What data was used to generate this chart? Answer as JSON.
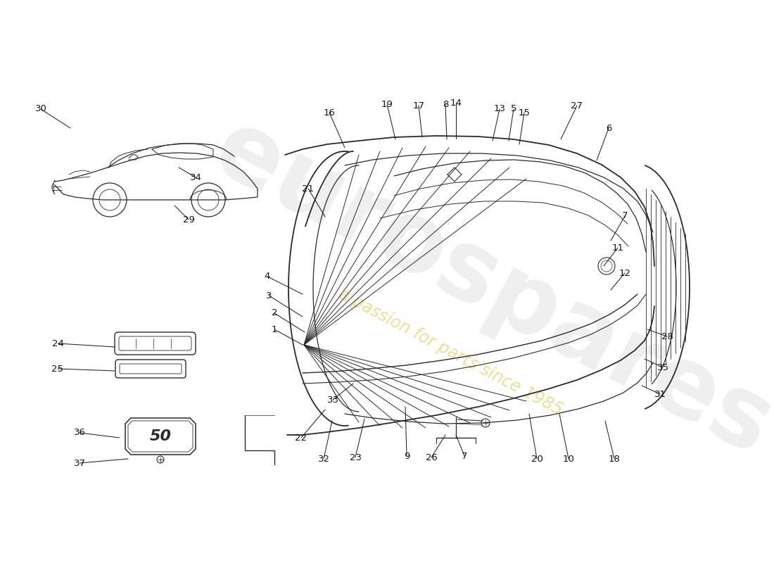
{
  "bg_color": "#ffffff",
  "line_color": "#2a2a2a",
  "label_color": "#111111",
  "wm_color": "#c8c8c8",
  "wm_alpha": 0.28,
  "wm_sub_color": "#d4c030",
  "wm_sub_alpha": 0.5,
  "labels": [
    [
      "1",
      390,
      468,
      430,
      490
    ],
    [
      "2",
      390,
      445,
      433,
      472
    ],
    [
      "3",
      382,
      420,
      430,
      450
    ],
    [
      "4",
      380,
      393,
      430,
      418
    ],
    [
      "5",
      730,
      155,
      723,
      200
    ],
    [
      "6",
      865,
      182,
      848,
      228
    ],
    [
      "7",
      888,
      307,
      868,
      342
    ],
    [
      "7",
      660,
      648,
      648,
      618
    ],
    [
      "8",
      633,
      148,
      635,
      198
    ],
    [
      "9",
      578,
      648,
      576,
      578
    ],
    [
      "10",
      808,
      652,
      795,
      588
    ],
    [
      "11",
      878,
      352,
      858,
      378
    ],
    [
      "12",
      888,
      388,
      868,
      412
    ],
    [
      "13",
      710,
      155,
      700,
      200
    ],
    [
      "14",
      648,
      147,
      648,
      197
    ],
    [
      "15",
      745,
      160,
      738,
      205
    ],
    [
      "16",
      468,
      160,
      490,
      210
    ],
    [
      "17",
      595,
      150,
      600,
      195
    ],
    [
      "18",
      873,
      652,
      860,
      598
    ],
    [
      "19",
      550,
      148,
      562,
      198
    ],
    [
      "20",
      763,
      652,
      752,
      588
    ],
    [
      "21",
      438,
      268,
      462,
      308
    ],
    [
      "22",
      428,
      622,
      462,
      582
    ],
    [
      "23",
      505,
      650,
      518,
      595
    ],
    [
      "24",
      82,
      488,
      163,
      493
    ],
    [
      "25",
      82,
      524,
      163,
      527
    ],
    [
      "26",
      613,
      650,
      633,
      618
    ],
    [
      "27",
      820,
      150,
      797,
      198
    ],
    [
      "28",
      948,
      478,
      920,
      468
    ],
    [
      "29",
      268,
      312,
      248,
      292
    ],
    [
      "30",
      58,
      155,
      100,
      182
    ],
    [
      "31",
      938,
      560,
      912,
      548
    ],
    [
      "32",
      460,
      652,
      472,
      598
    ],
    [
      "33",
      473,
      568,
      502,
      545
    ],
    [
      "34",
      278,
      252,
      254,
      238
    ],
    [
      "35",
      942,
      522,
      916,
      510
    ],
    [
      "36",
      113,
      615,
      170,
      622
    ],
    [
      "37",
      113,
      658,
      182,
      652
    ]
  ]
}
